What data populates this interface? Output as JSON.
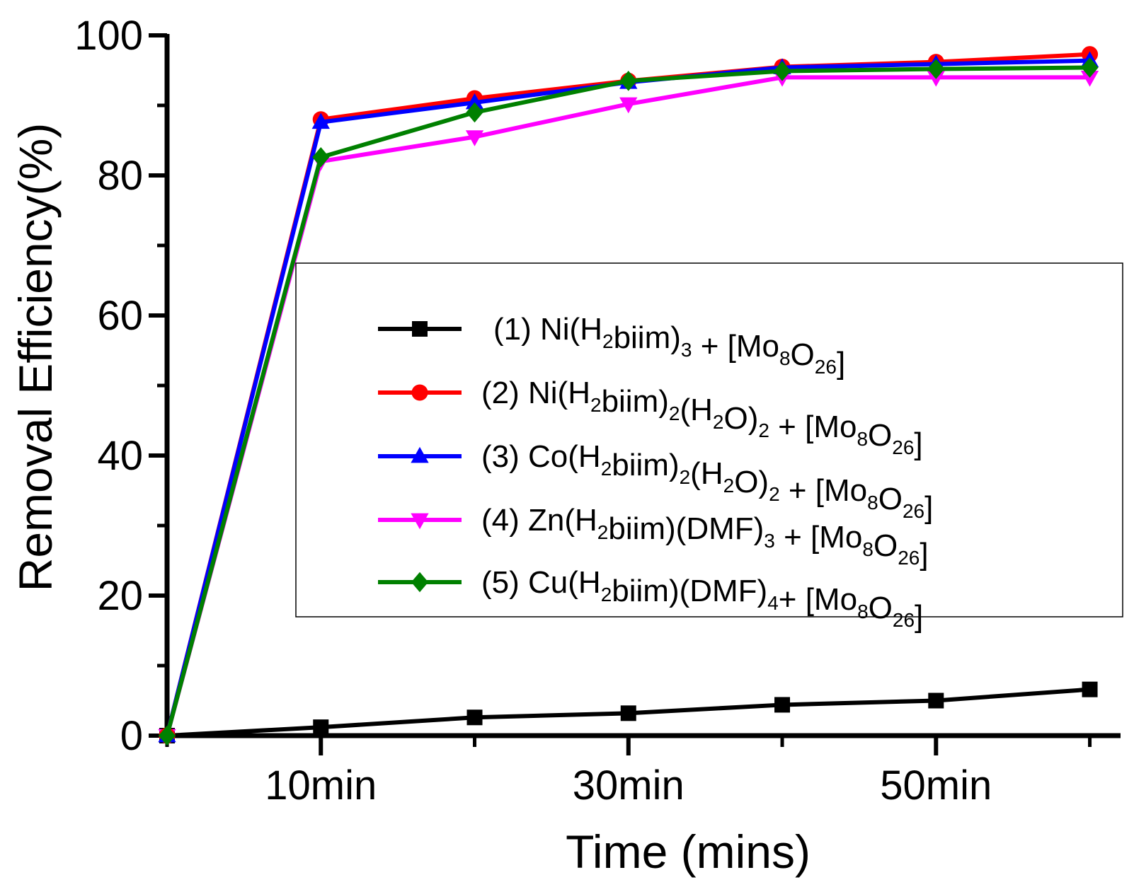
{
  "chart_data": {
    "type": "line",
    "xlabel": "Time (mins)",
    "ylabel": "Removal Efficiency(%)",
    "xlim": [
      0,
      62
    ],
    "ylim": [
      0,
      100
    ],
    "x_ticks": [
      {
        "value": 10,
        "label": "10min"
      },
      {
        "value": 30,
        "label": "30min"
      },
      {
        "value": 50,
        "label": "50min"
      }
    ],
    "x_minor_ticks": [
      0,
      20,
      40,
      60
    ],
    "y_ticks": [
      {
        "value": 0,
        "label": "0"
      },
      {
        "value": 20,
        "label": "20"
      },
      {
        "value": 40,
        "label": "40"
      },
      {
        "value": 60,
        "label": "60"
      },
      {
        "value": 80,
        "label": "80"
      },
      {
        "value": 100,
        "label": "100"
      }
    ],
    "y_minor_ticks": [
      10,
      30,
      50,
      70,
      90
    ],
    "x": [
      0,
      10,
      20,
      30,
      40,
      50,
      60
    ],
    "legend_position": "center-right",
    "series": [
      {
        "name": "(1) Ni(H2biim)3 + [Mo8O26]",
        "color": "#000000",
        "marker": "square",
        "values": [
          0,
          1.2,
          2.6,
          3.2,
          4.4,
          5.0,
          6.6
        ],
        "label_parts": [
          {
            "t": "(1) Ni(H",
            "sub": false
          },
          {
            "t": "2",
            "sub": true
          },
          {
            "t": "biim)",
            "sub": false
          },
          {
            "t": "3",
            "sub": true
          },
          {
            "t": " + [Mo",
            "sub": false
          },
          {
            "t": "8",
            "sub": true
          },
          {
            "t": "O",
            "sub": false
          },
          {
            "t": "26",
            "sub": true
          },
          {
            "t": "]",
            "sub": false
          }
        ]
      },
      {
        "name": "(2) Ni(H2biim)2(H2O)2 + [Mo8O26]",
        "color": "#ff0000",
        "marker": "circle",
        "values": [
          0,
          88.0,
          91.0,
          93.5,
          95.5,
          96.2,
          97.3
        ],
        "label_parts": [
          {
            "t": "(2) Ni(H",
            "sub": false
          },
          {
            "t": "2",
            "sub": true
          },
          {
            "t": "biim)",
            "sub": false
          },
          {
            "t": "2",
            "sub": true
          },
          {
            "t": "(H",
            "sub": false
          },
          {
            "t": "2",
            "sub": true
          },
          {
            "t": "O)",
            "sub": false
          },
          {
            "t": "2",
            "sub": true
          },
          {
            "t": " + [Mo",
            "sub": false
          },
          {
            "t": "8",
            "sub": true
          },
          {
            "t": "O",
            "sub": false
          },
          {
            "t": "26",
            "sub": true
          },
          {
            "t": "]",
            "sub": false
          }
        ]
      },
      {
        "name": "(3) Co(H2biim)2(H2O)2 + [Mo8O26]",
        "color": "#0000ff",
        "marker": "triangle-up",
        "values": [
          0,
          87.6,
          90.4,
          93.3,
          95.4,
          95.9,
          96.4
        ],
        "label_parts": [
          {
            "t": "(3) Co(H",
            "sub": false
          },
          {
            "t": "2",
            "sub": true
          },
          {
            "t": "biim)",
            "sub": false
          },
          {
            "t": "2",
            "sub": true
          },
          {
            "t": "(H",
            "sub": false
          },
          {
            "t": "2",
            "sub": true
          },
          {
            "t": "O)",
            "sub": false
          },
          {
            "t": "2",
            "sub": true
          },
          {
            "t": " + [Mo",
            "sub": false
          },
          {
            "t": "8",
            "sub": true
          },
          {
            "t": "O",
            "sub": false
          },
          {
            "t": "26",
            "sub": true
          },
          {
            "t": "]",
            "sub": false
          }
        ]
      },
      {
        "name": "(4) Zn(H2biim)(DMF)3 + [Mo8O26]",
        "color": "#ff00ff",
        "marker": "triangle-down",
        "values": [
          0,
          82.0,
          85.5,
          90.2,
          94.0,
          94.0,
          94.0
        ],
        "label_parts": [
          {
            "t": "(4) Zn(H",
            "sub": false
          },
          {
            "t": "2",
            "sub": true
          },
          {
            "t": "biim)(DMF)",
            "sub": false
          },
          {
            "t": "3",
            "sub": true
          },
          {
            "t": " + [Mo",
            "sub": false
          },
          {
            "t": "8",
            "sub": true
          },
          {
            "t": "O",
            "sub": false
          },
          {
            "t": "26",
            "sub": true
          },
          {
            "t": "]",
            "sub": false
          }
        ]
      },
      {
        "name": "(5) Cu(H2biim)(DMF)4+ [Mo8O26]",
        "color": "#008000",
        "marker": "diamond",
        "values": [
          0,
          82.6,
          89.0,
          93.5,
          94.9,
          95.2,
          95.4
        ],
        "label_parts": [
          {
            "t": "(5) Cu(H",
            "sub": false
          },
          {
            "t": "2",
            "sub": true
          },
          {
            "t": "biim)(DMF)",
            "sub": false
          },
          {
            "t": "4",
            "sub": true
          },
          {
            "t": "+ [Mo",
            "sub": false
          },
          {
            "t": "8",
            "sub": true
          },
          {
            "t": "O",
            "sub": false
          },
          {
            "t": "26",
            "sub": true
          },
          {
            "t": "]",
            "sub": false
          }
        ]
      }
    ]
  }
}
